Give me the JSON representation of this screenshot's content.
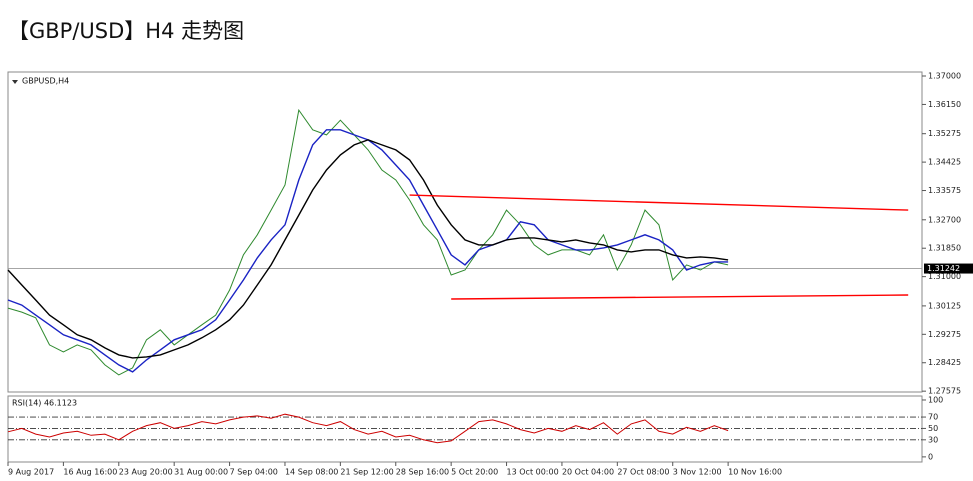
{
  "chart_data": [
    {
      "type": "line",
      "title": "【GBP/USD】H4 走势图",
      "subtitle": "GBPUSD,H4",
      "categories": [
        "9 Aug 2017",
        null,
        null,
        null,
        "16 Aug 16:00",
        null,
        null,
        null,
        "23 Aug 20:00",
        null,
        null,
        null,
        "31 Aug 00:00",
        null,
        null,
        null,
        "7 Sep 04:00",
        null,
        null,
        null,
        "14 Sep 08:00",
        null,
        null,
        null,
        "21 Sep 12:00",
        null,
        null,
        null,
        "28 Sep 16:00",
        null,
        null,
        null,
        "5 Oct 20:00",
        null,
        null,
        null,
        "13 Oct 00:00",
        null,
        null,
        null,
        "20 Oct 04:00",
        null,
        null,
        null,
        "27 Oct 08:00",
        null,
        null,
        null,
        "3 Nov 12:00",
        null,
        null,
        null,
        "10 Nov 16:00",
        null,
        null,
        null,
        null,
        null,
        null,
        null,
        null,
        null,
        null,
        null,
        null,
        null
      ],
      "series": [
        {
          "color": "#2f8a2f",
          "values": [
            1.3006,
            1.2994,
            1.2977,
            1.2896,
            1.2875,
            1.2896,
            1.2881,
            1.2836,
            1.2806,
            1.2827,
            1.2911,
            1.2941,
            1.2896,
            1.2926,
            1.2956,
            1.2985,
            1.306,
            1.3165,
            1.3225,
            1.3299,
            1.3374,
            1.3598,
            1.3539,
            1.3524,
            1.3568,
            1.3524,
            1.3479,
            1.3419,
            1.3389,
            1.3329,
            1.3255,
            1.321,
            1.3105,
            1.312,
            1.318,
            1.3225,
            1.3299,
            1.3255,
            1.3195,
            1.3165,
            1.318,
            1.318,
            1.3165,
            1.3225,
            1.312,
            1.3195,
            1.3299,
            1.3255,
            1.309,
            1.3135,
            1.312,
            1.3144,
            1.3135,
            null,
            null,
            null,
            null,
            null,
            null,
            null,
            null,
            null,
            null,
            null,
            null,
            null
          ]
        },
        {
          "color": "#1a23c4",
          "values": [
            1.303,
            1.3015,
            1.2985,
            1.2956,
            1.2926,
            1.2911,
            1.2896,
            1.2866,
            1.2836,
            1.2815,
            1.2851,
            1.2881,
            1.2911,
            1.2926,
            1.2941,
            1.2971,
            1.303,
            1.309,
            1.3156,
            1.321,
            1.3255,
            1.3389,
            1.3494,
            1.3539,
            1.3539,
            1.3524,
            1.3509,
            1.3479,
            1.3434,
            1.3389,
            1.3314,
            1.324,
            1.3165,
            1.3135,
            1.318,
            1.3195,
            1.321,
            1.3264,
            1.3255,
            1.321,
            1.3195,
            1.318,
            1.318,
            1.3186,
            1.3195,
            1.321,
            1.3225,
            1.321,
            1.318,
            1.312,
            1.3135,
            1.3144,
            1.3144,
            null,
            null,
            null,
            null,
            null,
            null,
            null,
            null,
            null,
            null,
            null,
            null,
            null
          ]
        },
        {
          "color": "#000000",
          "values": [
            1.312,
            1.3075,
            1.303,
            1.2985,
            1.2956,
            1.2926,
            1.2911,
            1.2887,
            1.2866,
            1.2857,
            1.286,
            1.2866,
            1.2881,
            1.2896,
            1.2917,
            1.2941,
            1.2971,
            1.3015,
            1.3075,
            1.3135,
            1.321,
            1.3284,
            1.3359,
            1.3419,
            1.3464,
            1.3494,
            1.3509,
            1.3494,
            1.3479,
            1.3449,
            1.3389,
            1.3314,
            1.3255,
            1.321,
            1.3195,
            1.3195,
            1.321,
            1.3216,
            1.3216,
            1.321,
            1.3204,
            1.321,
            1.3201,
            1.3195,
            1.318,
            1.3174,
            1.318,
            1.318,
            1.3165,
            1.3156,
            1.3159,
            1.3156,
            1.315,
            null,
            null,
            null,
            null,
            null,
            null,
            null,
            null,
            null,
            null,
            null,
            null,
            null
          ]
        }
      ],
      "trendlines": [
        {
          "color": "#ff0000",
          "x": [
            29,
            65
          ],
          "values": [
            1.3344,
            1.3299
          ]
        },
        {
          "color": "#ff0000",
          "x": [
            32,
            65
          ],
          "values": [
            1.3033,
            1.3045
          ]
        }
      ],
      "current_price": 1.31242,
      "ylim": [
        1.2755,
        1.3712
      ],
      "yticks": [
        {
          "value": 1.37,
          "label": "1.37000"
        },
        {
          "value": 1.3615,
          "label": "1.36150"
        },
        1.35275,
        1.34425,
        1.33575,
        {
          "value": 1.327,
          "label": "1.32700"
        },
        {
          "value": 1.3185,
          "label": "1.31850"
        },
        {
          "value": 1.31,
          "label": "1.31000"
        },
        1.30125,
        1.29275,
        1.28425,
        1.27575
      ]
    },
    {
      "type": "line",
      "title": "RSI(14) 46.1123",
      "series": [
        {
          "color": "#cc0000",
          "values": [
            44,
            50,
            40,
            35,
            42,
            45,
            38,
            40,
            30,
            45,
            55,
            60,
            50,
            55,
            62,
            58,
            65,
            70,
            72,
            68,
            75,
            70,
            60,
            55,
            62,
            48,
            40,
            45,
            35,
            38,
            30,
            25,
            28,
            45,
            62,
            65,
            58,
            48,
            42,
            50,
            45,
            55,
            48,
            60,
            40,
            58,
            65,
            45,
            40,
            52,
            45,
            55,
            46.1123,
            null,
            null,
            null,
            null,
            null,
            null,
            null,
            null,
            null,
            null,
            null,
            null,
            null
          ]
        }
      ],
      "levels": [
        70,
        50,
        30
      ],
      "ylim": [
        -9,
        107
      ],
      "yticks": [
        100,
        70,
        50,
        30,
        0
      ]
    }
  ]
}
